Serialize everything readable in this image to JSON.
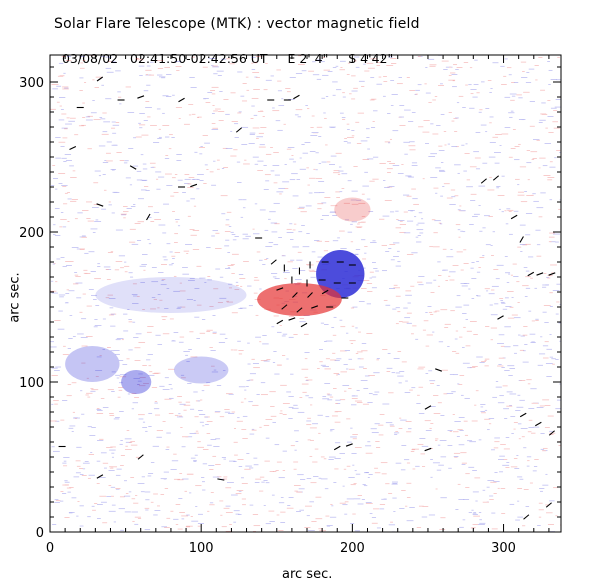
{
  "title": "Solar Flare Telescope (MTK) : vector magnetic field",
  "subtitle": {
    "date": "03/08/02",
    "time_range": "02:41:50-02:42:56 UT",
    "lon": "E 2' 4\"",
    "lat": "S 4'42\""
  },
  "map_data": {
    "type": "vector-magnetogram",
    "xlabel": "arc sec.",
    "ylabel": "arc sec.",
    "xlim": [
      0,
      338
    ],
    "ylim": [
      0,
      318
    ],
    "xticks": [
      0,
      100,
      200,
      300
    ],
    "yticks": [
      0,
      100,
      200,
      300
    ],
    "x_minor_step": 10,
    "y_minor_step": 10,
    "colors": {
      "positive": "#e53333",
      "negative": "#2d2dd6",
      "vector": "#000000",
      "background": "#ffffff"
    }
  }
}
